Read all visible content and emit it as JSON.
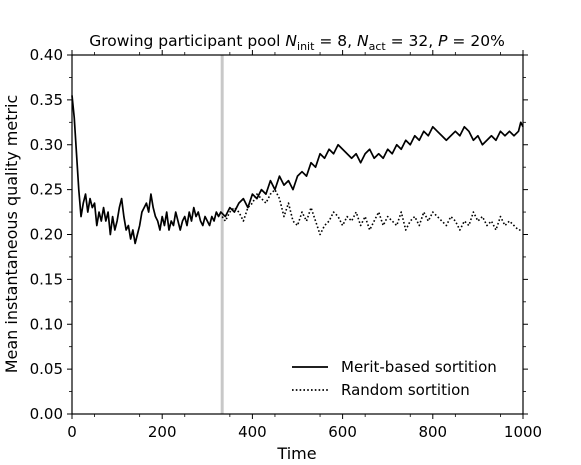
{
  "chart_data": {
    "type": "line",
    "title": {
      "prefix": "Growing participant pool ",
      "n_init_sym": "N",
      "n_init_sub": "init",
      "n_init_eq": " = 8, ",
      "n_act_sym": "N",
      "n_act_sub": "act",
      "n_act_eq": " = 32, ",
      "p_sym": "P",
      "p_eq": " = 20%"
    },
    "xlabel": "Time",
    "ylabel": "Mean instantaneous quality metric",
    "xlim": [
      0,
      1000
    ],
    "ylim": [
      0.0,
      0.4
    ],
    "xticks": [
      0,
      200,
      400,
      600,
      800,
      1000
    ],
    "xtick_labels": [
      "0",
      "200",
      "400",
      "600",
      "800",
      "1000"
    ],
    "yticks": [
      0.0,
      0.05,
      0.1,
      0.15,
      0.2,
      0.25,
      0.3,
      0.35,
      0.4
    ],
    "ytick_labels": [
      "0.00",
      "0.05",
      "0.10",
      "0.15",
      "0.20",
      "0.25",
      "0.30",
      "0.35",
      "0.40"
    ],
    "grid": false,
    "legend_position": "lower right",
    "vline": {
      "x": 333,
      "color": "#c8c8c8"
    },
    "series": [
      {
        "name": "Merit-based sortition",
        "style": "solid",
        "color": "#000000",
        "x": [
          0,
          5,
          10,
          15,
          20,
          25,
          30,
          35,
          40,
          45,
          50,
          55,
          60,
          65,
          70,
          75,
          80,
          85,
          90,
          95,
          100,
          105,
          110,
          115,
          120,
          125,
          130,
          135,
          140,
          145,
          150,
          155,
          160,
          165,
          170,
          175,
          180,
          185,
          190,
          195,
          200,
          205,
          210,
          215,
          220,
          225,
          230,
          235,
          240,
          245,
          250,
          255,
          260,
          265,
          270,
          275,
          280,
          285,
          290,
          295,
          300,
          305,
          310,
          315,
          320,
          325,
          330,
          340,
          350,
          360,
          370,
          380,
          390,
          400,
          410,
          420,
          430,
          440,
          450,
          460,
          470,
          480,
          490,
          500,
          510,
          520,
          530,
          540,
          550,
          560,
          570,
          580,
          590,
          600,
          610,
          620,
          630,
          640,
          650,
          660,
          670,
          680,
          690,
          700,
          710,
          720,
          730,
          740,
          750,
          760,
          770,
          780,
          790,
          800,
          810,
          820,
          830,
          840,
          850,
          860,
          870,
          880,
          890,
          900,
          910,
          920,
          930,
          940,
          950,
          960,
          970,
          980,
          990,
          995,
          1000
        ],
        "y": [
          0.355,
          0.33,
          0.29,
          0.25,
          0.22,
          0.235,
          0.245,
          0.225,
          0.24,
          0.23,
          0.235,
          0.21,
          0.225,
          0.215,
          0.23,
          0.215,
          0.225,
          0.2,
          0.22,
          0.205,
          0.215,
          0.23,
          0.24,
          0.22,
          0.205,
          0.21,
          0.195,
          0.205,
          0.19,
          0.2,
          0.21,
          0.225,
          0.23,
          0.235,
          0.225,
          0.245,
          0.23,
          0.22,
          0.215,
          0.205,
          0.22,
          0.21,
          0.225,
          0.205,
          0.215,
          0.21,
          0.225,
          0.215,
          0.205,
          0.215,
          0.22,
          0.21,
          0.225,
          0.215,
          0.23,
          0.22,
          0.225,
          0.215,
          0.21,
          0.22,
          0.215,
          0.21,
          0.22,
          0.215,
          0.225,
          0.22,
          0.225,
          0.22,
          0.23,
          0.225,
          0.235,
          0.24,
          0.23,
          0.245,
          0.24,
          0.25,
          0.245,
          0.26,
          0.25,
          0.265,
          0.255,
          0.26,
          0.25,
          0.265,
          0.27,
          0.265,
          0.28,
          0.275,
          0.29,
          0.285,
          0.295,
          0.29,
          0.3,
          0.295,
          0.29,
          0.285,
          0.29,
          0.28,
          0.29,
          0.295,
          0.285,
          0.29,
          0.285,
          0.295,
          0.29,
          0.3,
          0.295,
          0.305,
          0.3,
          0.31,
          0.305,
          0.315,
          0.31,
          0.32,
          0.315,
          0.31,
          0.305,
          0.31,
          0.315,
          0.31,
          0.32,
          0.315,
          0.305,
          0.31,
          0.3,
          0.305,
          0.31,
          0.305,
          0.315,
          0.31,
          0.315,
          0.31,
          0.315,
          0.325,
          0.32
        ]
      },
      {
        "name": "Random sortition",
        "style": "dotted",
        "color": "#000000",
        "x": [
          333,
          340,
          350,
          360,
          370,
          380,
          390,
          400,
          410,
          420,
          430,
          440,
          450,
          460,
          470,
          480,
          490,
          500,
          510,
          520,
          530,
          540,
          550,
          560,
          570,
          580,
          590,
          600,
          610,
          620,
          630,
          640,
          650,
          660,
          670,
          680,
          690,
          700,
          710,
          720,
          730,
          740,
          750,
          760,
          770,
          780,
          790,
          800,
          810,
          820,
          830,
          840,
          850,
          860,
          870,
          880,
          890,
          900,
          910,
          920,
          930,
          940,
          950,
          960,
          970,
          980,
          990,
          1000
        ],
        "y": [
          0.22,
          0.215,
          0.225,
          0.23,
          0.225,
          0.215,
          0.23,
          0.235,
          0.245,
          0.24,
          0.235,
          0.245,
          0.25,
          0.24,
          0.22,
          0.235,
          0.215,
          0.21,
          0.225,
          0.215,
          0.23,
          0.215,
          0.2,
          0.21,
          0.215,
          0.225,
          0.22,
          0.21,
          0.22,
          0.215,
          0.225,
          0.21,
          0.22,
          0.205,
          0.215,
          0.225,
          0.21,
          0.22,
          0.215,
          0.21,
          0.225,
          0.205,
          0.215,
          0.22,
          0.21,
          0.225,
          0.215,
          0.225,
          0.22,
          0.215,
          0.21,
          0.22,
          0.215,
          0.205,
          0.215,
          0.21,
          0.225,
          0.215,
          0.22,
          0.21,
          0.215,
          0.205,
          0.22,
          0.21,
          0.215,
          0.21,
          0.205,
          0.205
        ]
      }
    ]
  }
}
